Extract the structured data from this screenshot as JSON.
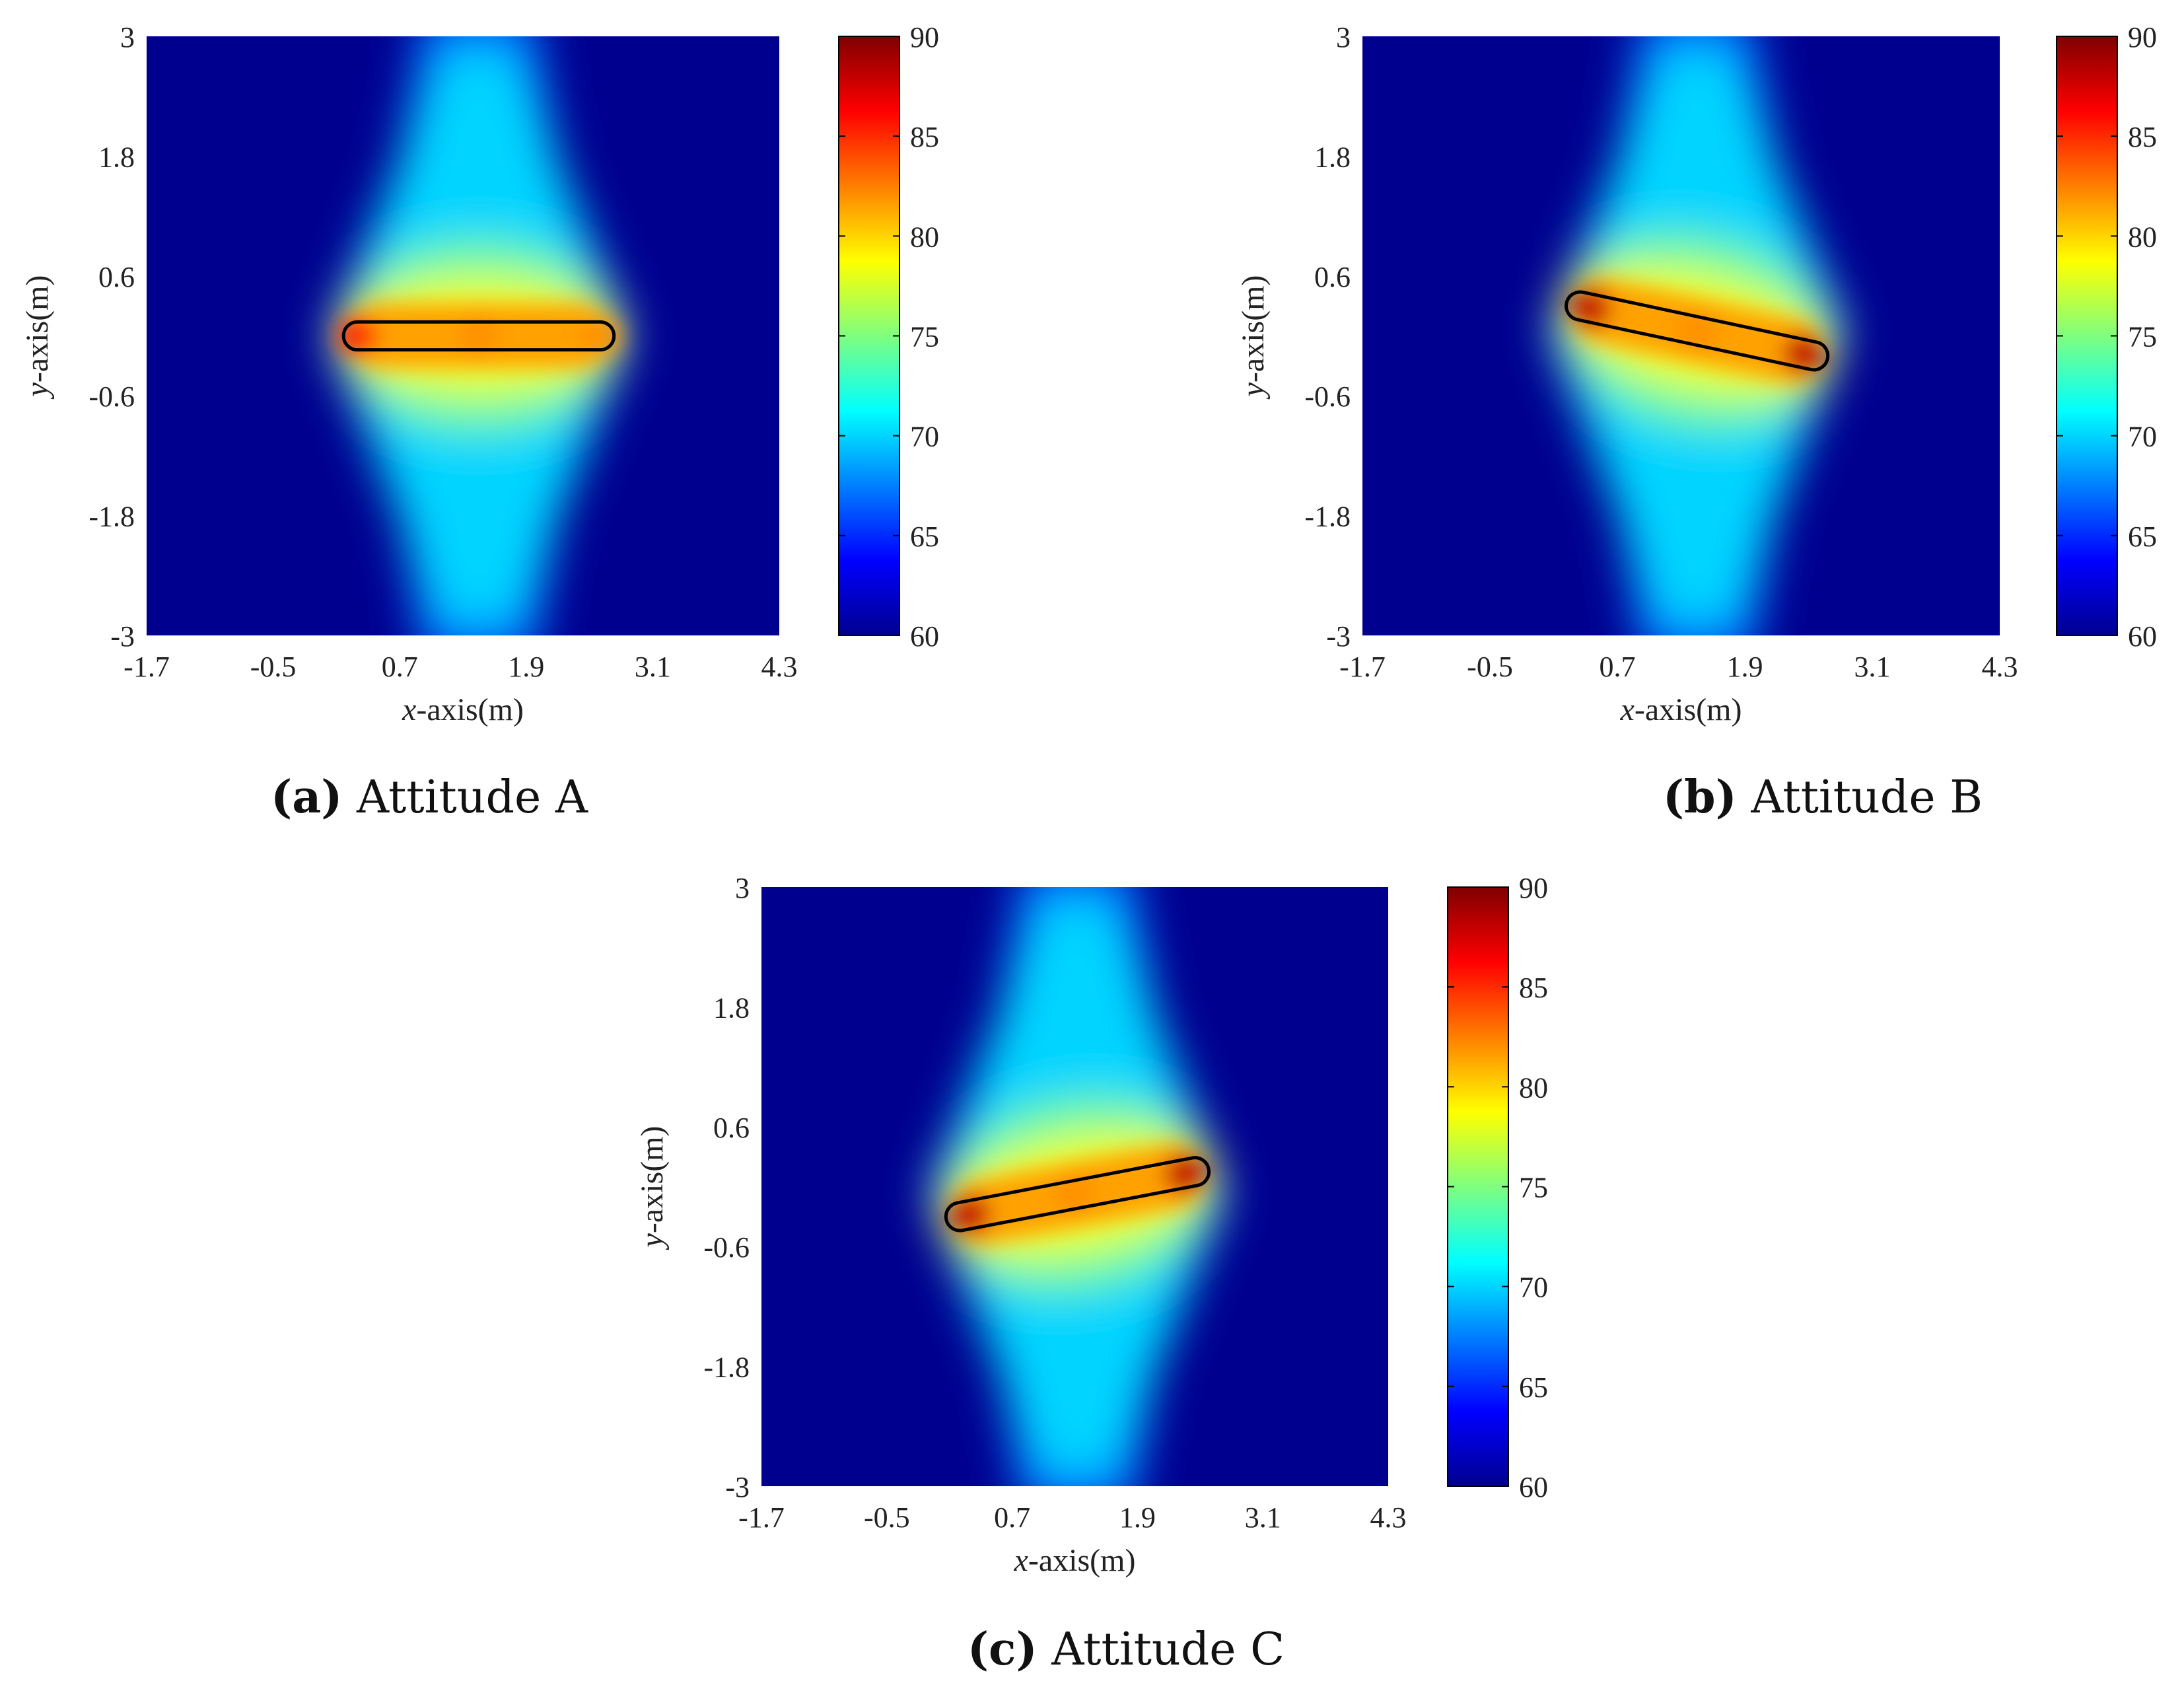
{
  "colors": {
    "colormap": [
      "#00008f",
      "#0000ff",
      "#007fff",
      "#00ffff",
      "#7fff7f",
      "#ffff00",
      "#ff7f00",
      "#ff0000",
      "#7f0000"
    ],
    "outline": "#000000"
  },
  "chart_data": [
    {
      "type": "heatmap",
      "panel_letter": "(a)",
      "caption": "Attitude A",
      "xlabel_var": "x",
      "xlabel_rest": "-axis(m)",
      "ylabel_var": "y",
      "ylabel_rest": "-axis(m)",
      "xlim": [
        -1.7,
        4.3
      ],
      "ylim": [
        -3,
        3
      ],
      "xticks": [
        "-1.7",
        "-0.5",
        "0.7",
        "1.9",
        "3.1",
        "4.3"
      ],
      "yticks": [
        "-3",
        "-1.8",
        "-0.6",
        "0.6",
        "1.8",
        "3"
      ],
      "colorbar": {
        "range": [
          60,
          90
        ],
        "ticks": [
          "60",
          "65",
          "70",
          "75",
          "80",
          "85",
          "90"
        ]
      },
      "background_value": 60,
      "object": {
        "x1": 0.3,
        "y1": 0.0,
        "x2": 2.6,
        "y2": 0.0,
        "half_width": 0.14
      },
      "hot_spots": [
        {
          "x": 0.3,
          "y": 0.0,
          "value": 85
        },
        {
          "x": 1.45,
          "y": 0.0,
          "value": 82
        },
        {
          "x": 2.6,
          "y": 0.0,
          "value": 82
        }
      ]
    },
    {
      "type": "heatmap",
      "panel_letter": "(b)",
      "caption": "Attitude B",
      "xlabel_var": "x",
      "xlabel_rest": "-axis(m)",
      "ylabel_var": "y",
      "ylabel_rest": "-axis(m)",
      "xlim": [
        -1.7,
        4.3
      ],
      "ylim": [
        -3,
        3
      ],
      "xticks": [
        "-1.7",
        "-0.5",
        "0.7",
        "1.9",
        "3.1",
        "4.3"
      ],
      "yticks": [
        "-3",
        "-1.8",
        "-0.6",
        "0.6",
        "1.8",
        "3"
      ],
      "colorbar": {
        "range": [
          60,
          90
        ],
        "ticks": [
          "60",
          "65",
          "70",
          "75",
          "80",
          "85",
          "90"
        ]
      },
      "background_value": 60,
      "object": {
        "x1": 0.35,
        "y1": 0.3,
        "x2": 2.55,
        "y2": -0.2,
        "half_width": 0.14
      },
      "hot_spots": [
        {
          "x": 0.45,
          "y": 0.28,
          "value": 88
        },
        {
          "x": 1.45,
          "y": 0.05,
          "value": 82
        },
        {
          "x": 2.45,
          "y": -0.18,
          "value": 88
        }
      ]
    },
    {
      "type": "heatmap",
      "panel_letter": "(c)",
      "caption": "Attitude C",
      "xlabel_var": "x",
      "xlabel_rest": "-axis(m)",
      "ylabel_var": "y",
      "ylabel_rest": "-axis(m)",
      "xlim": [
        -1.7,
        4.3
      ],
      "ylim": [
        -3,
        3
      ],
      "xticks": [
        "-1.7",
        "-0.5",
        "0.7",
        "1.9",
        "3.1",
        "4.3"
      ],
      "yticks": [
        "-3",
        "-1.8",
        "-0.6",
        "0.6",
        "1.8",
        "3"
      ],
      "colorbar": {
        "range": [
          60,
          90
        ],
        "ticks": [
          "60",
          "65",
          "70",
          "75",
          "80",
          "85",
          "90"
        ]
      },
      "background_value": 60,
      "object": {
        "x1": 0.2,
        "y1": -0.3,
        "x2": 2.45,
        "y2": 0.15,
        "half_width": 0.14
      },
      "hot_spots": [
        {
          "x": 0.3,
          "y": -0.28,
          "value": 88
        },
        {
          "x": 1.3,
          "y": -0.07,
          "value": 82
        },
        {
          "x": 2.35,
          "y": 0.13,
          "value": 88
        }
      ]
    }
  ]
}
